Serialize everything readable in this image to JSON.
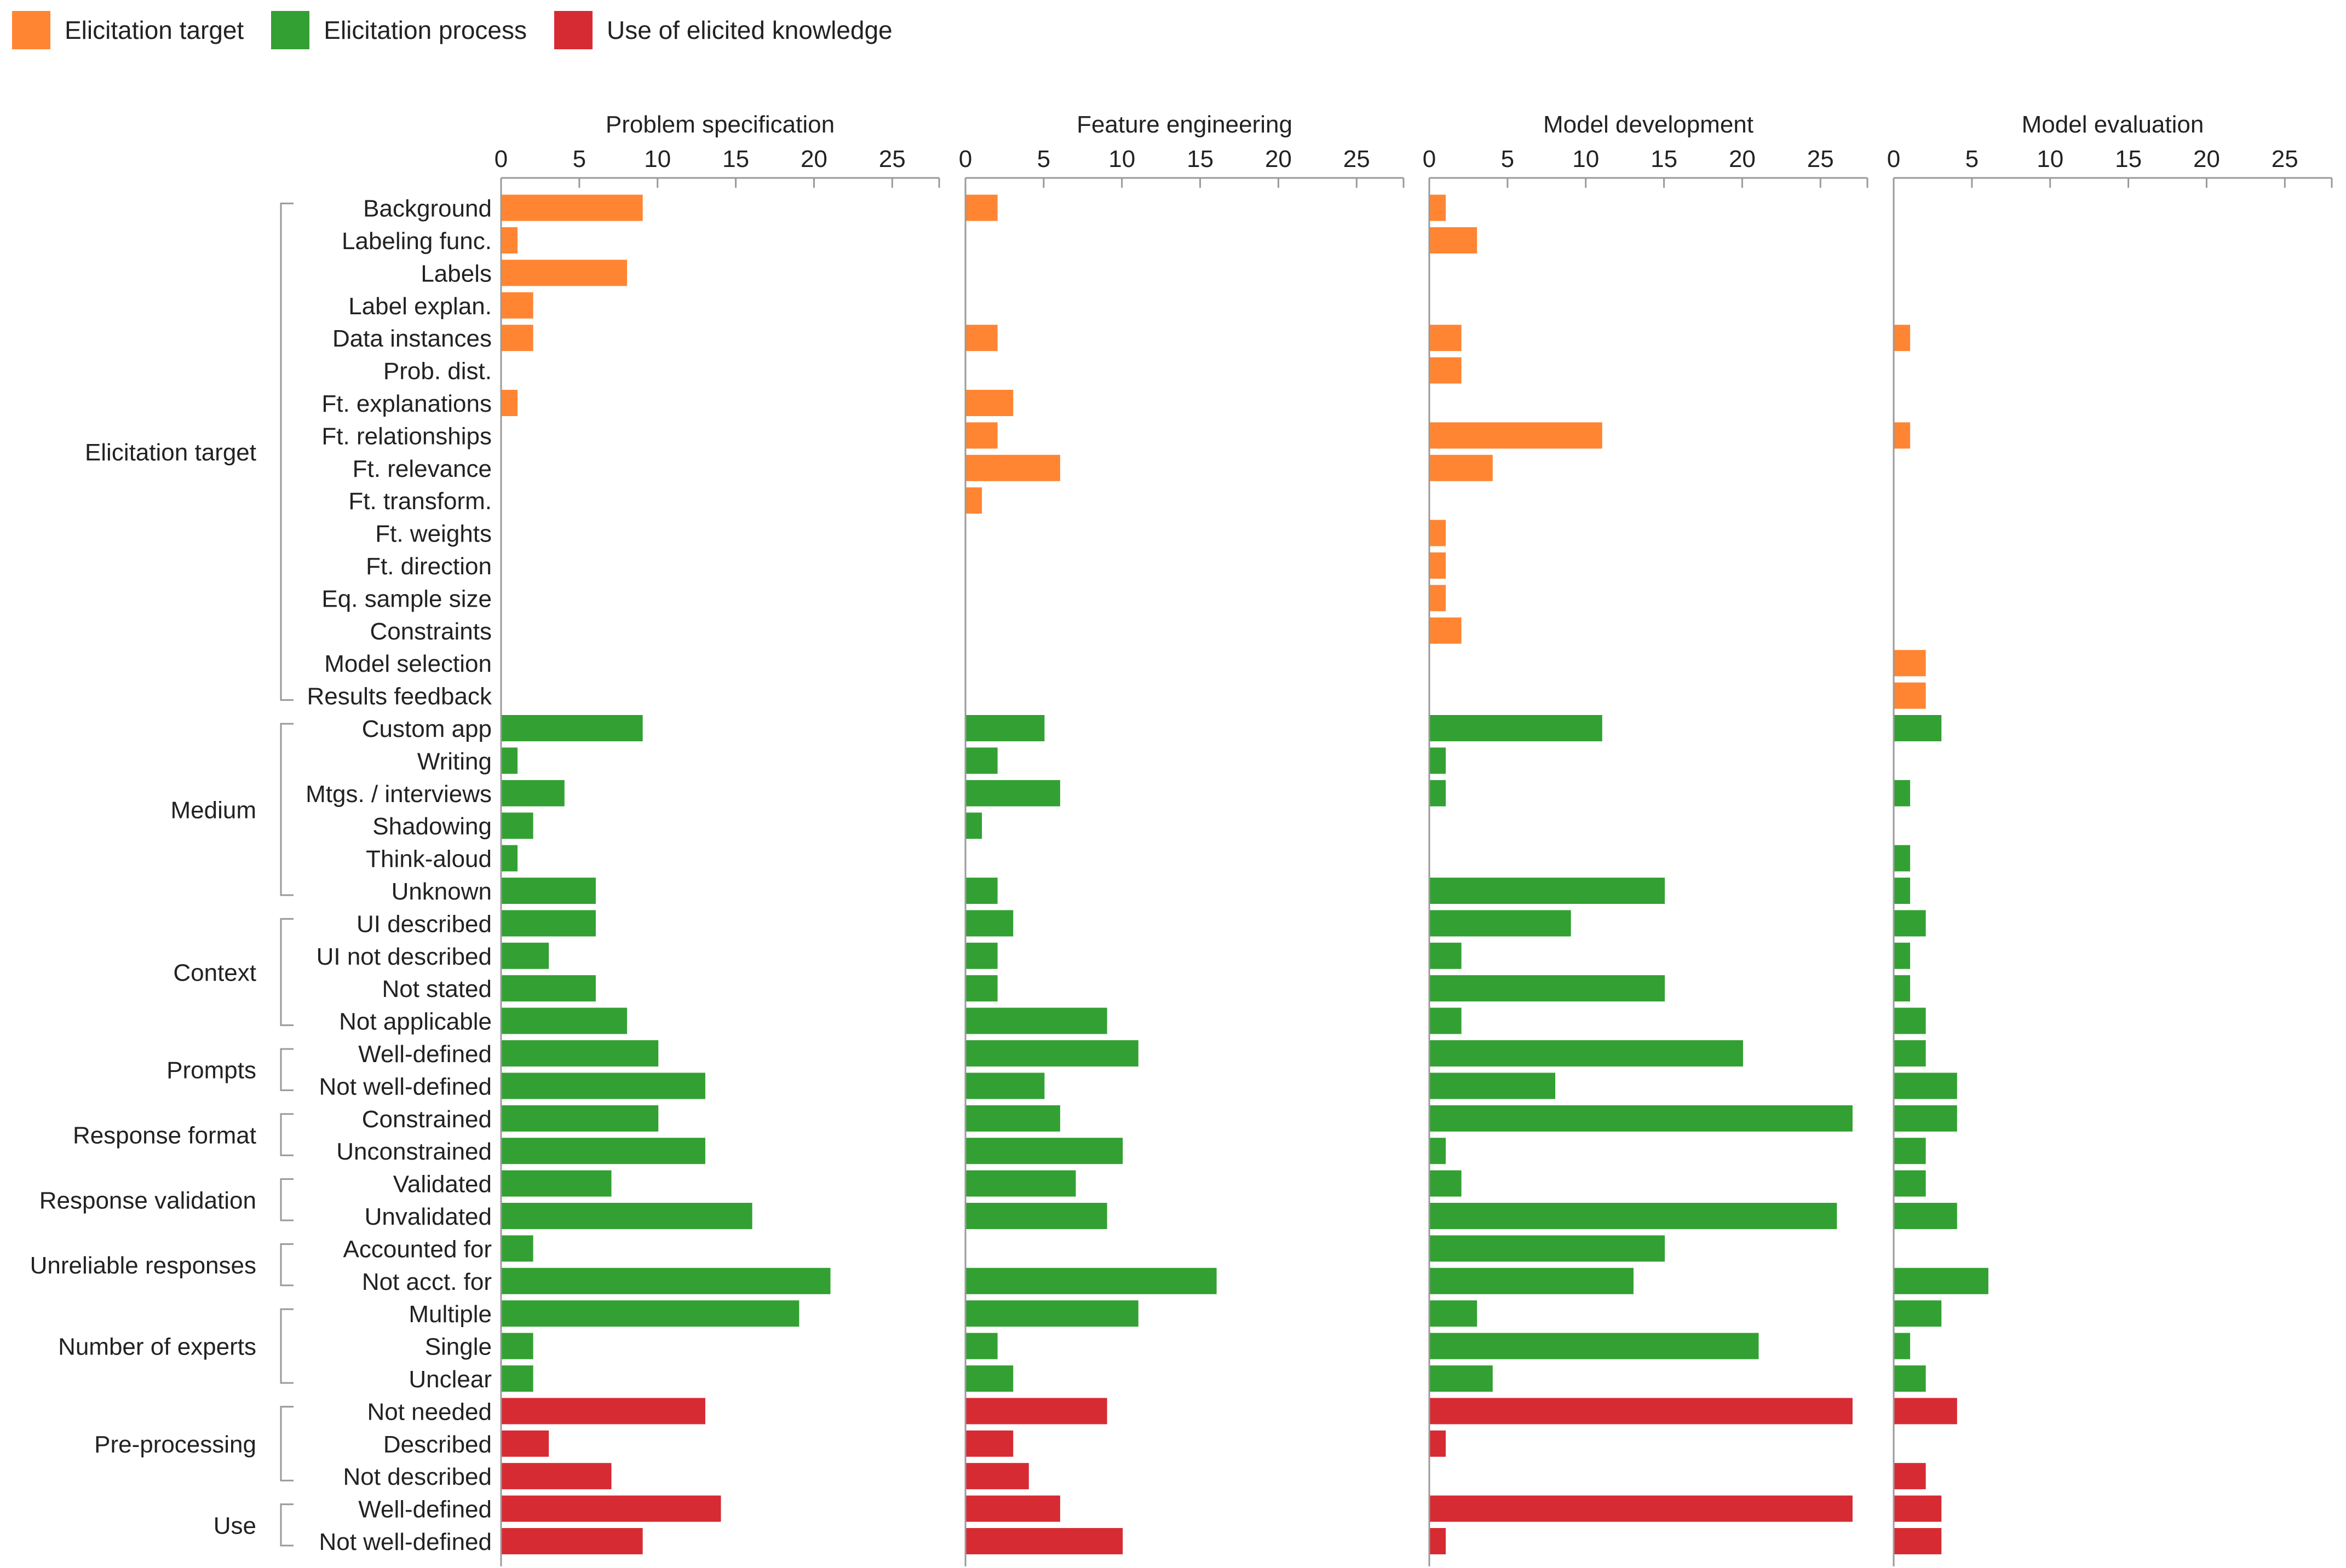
{
  "legend": [
    {
      "label": "Elicitation target",
      "color": "#ff8533"
    },
    {
      "label": "Elicitation process",
      "color": "#33a033"
    },
    {
      "label": "Use of elicited knowledge",
      "color": "#d62b33"
    }
  ],
  "chart_data": {
    "type": "bar",
    "orientation": "horizontal",
    "panels": [
      "Problem specification",
      "Feature engineering",
      "Model development",
      "Model evaluation"
    ],
    "x_ticks": [
      0,
      5,
      10,
      15,
      20,
      25
    ],
    "xlim": [
      0,
      28
    ],
    "groups": [
      {
        "label": "Elicitation target",
        "start": 0,
        "end": 15
      },
      {
        "label": "Medium",
        "start": 16,
        "end": 21
      },
      {
        "label": "Context",
        "start": 22,
        "end": 25
      },
      {
        "label": "Prompts",
        "start": 26,
        "end": 27
      },
      {
        "label": "Response format",
        "start": 28,
        "end": 29
      },
      {
        "label": "Response validation",
        "start": 30,
        "end": 31
      },
      {
        "label": "Unreliable responses",
        "start": 32,
        "end": 33
      },
      {
        "label": "Number of experts",
        "start": 34,
        "end": 36
      },
      {
        "label": "Pre-processing",
        "start": 37,
        "end": 39
      },
      {
        "label": "Use",
        "start": 40,
        "end": 41
      }
    ],
    "rows": [
      {
        "label": "Background",
        "cat": 0,
        "values": [
          9,
          2,
          1,
          0
        ]
      },
      {
        "label": "Labeling func.",
        "cat": 0,
        "values": [
          1,
          0,
          3,
          0
        ]
      },
      {
        "label": "Labels",
        "cat": 0,
        "values": [
          8,
          0,
          0,
          0
        ]
      },
      {
        "label": "Label explan.",
        "cat": 0,
        "values": [
          2,
          0,
          0,
          0
        ]
      },
      {
        "label": "Data instances",
        "cat": 0,
        "values": [
          2,
          2,
          2,
          1
        ]
      },
      {
        "label": "Prob. dist.",
        "cat": 0,
        "values": [
          0,
          0,
          2,
          0
        ]
      },
      {
        "label": "Ft. explanations",
        "cat": 0,
        "values": [
          1,
          3,
          0,
          0
        ]
      },
      {
        "label": "Ft. relationships",
        "cat": 0,
        "values": [
          0,
          2,
          11,
          1
        ]
      },
      {
        "label": "Ft. relevance",
        "cat": 0,
        "values": [
          0,
          6,
          4,
          0
        ]
      },
      {
        "label": "Ft. transform.",
        "cat": 0,
        "values": [
          0,
          1,
          0,
          0
        ]
      },
      {
        "label": "Ft. weights",
        "cat": 0,
        "values": [
          0,
          0,
          1,
          0
        ]
      },
      {
        "label": "Ft. direction",
        "cat": 0,
        "values": [
          0,
          0,
          1,
          0
        ]
      },
      {
        "label": "Eq. sample size",
        "cat": 0,
        "values": [
          0,
          0,
          1,
          0
        ]
      },
      {
        "label": "Constraints",
        "cat": 0,
        "values": [
          0,
          0,
          2,
          0
        ]
      },
      {
        "label": "Model selection",
        "cat": 0,
        "values": [
          0,
          0,
          0,
          2
        ]
      },
      {
        "label": "Results feedback",
        "cat": 0,
        "values": [
          0,
          0,
          0,
          2
        ]
      },
      {
        "label": "Custom app",
        "cat": 1,
        "values": [
          9,
          5,
          11,
          3
        ]
      },
      {
        "label": "Writing",
        "cat": 1,
        "values": [
          1,
          2,
          1,
          0
        ]
      },
      {
        "label": "Mtgs. / interviews",
        "cat": 1,
        "values": [
          4,
          6,
          1,
          1
        ]
      },
      {
        "label": "Shadowing",
        "cat": 1,
        "values": [
          2,
          1,
          0,
          0
        ]
      },
      {
        "label": "Think-aloud",
        "cat": 1,
        "values": [
          1,
          0,
          0,
          1
        ]
      },
      {
        "label": "Unknown",
        "cat": 1,
        "values": [
          6,
          2,
          15,
          1
        ]
      },
      {
        "label": "UI described",
        "cat": 1,
        "values": [
          6,
          3,
          9,
          2
        ]
      },
      {
        "label": "UI not described",
        "cat": 1,
        "values": [
          3,
          2,
          2,
          1
        ]
      },
      {
        "label": "Not stated",
        "cat": 1,
        "values": [
          6,
          2,
          15,
          1
        ]
      },
      {
        "label": "Not applicable",
        "cat": 1,
        "values": [
          8,
          9,
          2,
          2
        ]
      },
      {
        "label": "Well-defined",
        "cat": 1,
        "values": [
          10,
          11,
          20,
          2
        ]
      },
      {
        "label": "Not well-defined",
        "cat": 1,
        "values": [
          13,
          5,
          8,
          4
        ]
      },
      {
        "label": "Constrained",
        "cat": 1,
        "values": [
          10,
          6,
          27,
          4
        ]
      },
      {
        "label": "Unconstrained",
        "cat": 1,
        "values": [
          13,
          10,
          1,
          2
        ]
      },
      {
        "label": "Validated",
        "cat": 1,
        "values": [
          7,
          7,
          2,
          2
        ]
      },
      {
        "label": "Unvalidated",
        "cat": 1,
        "values": [
          16,
          9,
          26,
          4
        ]
      },
      {
        "label": "Accounted for",
        "cat": 1,
        "values": [
          2,
          0,
          15,
          0
        ]
      },
      {
        "label": "Not acct. for",
        "cat": 1,
        "values": [
          21,
          16,
          13,
          6
        ]
      },
      {
        "label": "Multiple",
        "cat": 1,
        "values": [
          19,
          11,
          3,
          3
        ]
      },
      {
        "label": "Single",
        "cat": 1,
        "values": [
          2,
          2,
          21,
          1
        ]
      },
      {
        "label": "Unclear",
        "cat": 1,
        "values": [
          2,
          3,
          4,
          2
        ]
      },
      {
        "label": "Not needed",
        "cat": 2,
        "values": [
          13,
          9,
          27,
          4
        ]
      },
      {
        "label": "Described",
        "cat": 2,
        "values": [
          3,
          3,
          1,
          0
        ]
      },
      {
        "label": "Not described",
        "cat": 2,
        "values": [
          7,
          4,
          0,
          2
        ]
      },
      {
        "label": "Well-defined",
        "cat": 2,
        "values": [
          14,
          6,
          27,
          3
        ]
      },
      {
        "label": "Not well-defined",
        "cat": 2,
        "values": [
          9,
          10,
          1,
          3
        ]
      }
    ]
  }
}
